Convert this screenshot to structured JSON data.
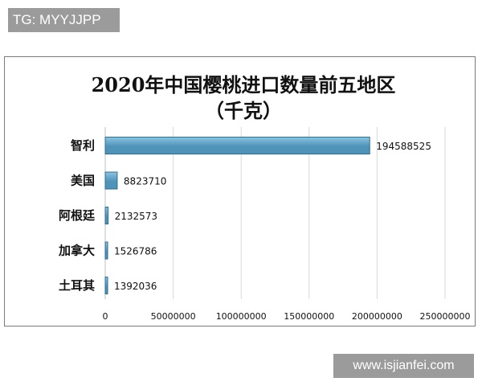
{
  "watermarks": {
    "top_left": "TG: MYYJJPP",
    "bottom_right": "www.isjianfei.com"
  },
  "chart_data": {
    "type": "bar",
    "orientation": "horizontal",
    "title": "2020年中国樱桃进口数量前五地区",
    "subtitle": "（千克）",
    "categories": [
      "智利",
      "美国",
      "阿根廷",
      "加拿大",
      "土耳其"
    ],
    "values": [
      194588525,
      8823710,
      2132573,
      1526786,
      1392036
    ],
    "value_labels": [
      "194588525",
      "8823710",
      "2132573",
      "1526786",
      "1392036"
    ],
    "xlim": [
      0,
      250000000
    ],
    "x_ticks": [
      0,
      50000000,
      100000000,
      150000000,
      200000000,
      250000000
    ],
    "x_tick_labels": [
      "0",
      "50000000",
      "100000000",
      "150000000",
      "200000000",
      "250000000"
    ],
    "grid": true,
    "bar_color": "#4f93b8",
    "bar_highlight": "#8cc4e0",
    "legend": "none"
  }
}
